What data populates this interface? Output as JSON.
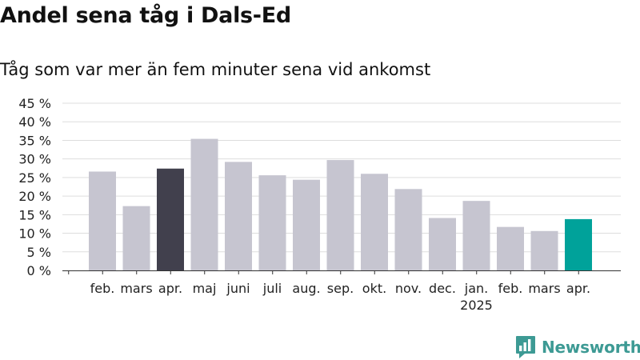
{
  "title": "Andel sena tåg i Dals-Ed",
  "subtitle": "Tåg som var mer än fem minuter sena vid ankomst",
  "brand": {
    "name": "Newsworthy",
    "color": "#3d9a94"
  },
  "chart_data": {
    "type": "bar",
    "categories": [
      "feb.",
      "mars",
      "apr.",
      "maj",
      "juni",
      "juli",
      "aug.",
      "sep.",
      "okt.",
      "nov.",
      "dec.",
      "jan.",
      "feb.",
      "mars",
      "apr."
    ],
    "year_labels": [
      {
        "index": 11,
        "text": "2025"
      }
    ],
    "values": [
      26.6,
      17.3,
      27.4,
      35.4,
      29.2,
      25.6,
      24.4,
      29.7,
      26.0,
      21.9,
      14.1,
      18.7,
      11.7,
      10.6,
      13.8
    ],
    "colors": [
      "#c6c5d0",
      "#c6c5d0",
      "#41404d",
      "#c6c5d0",
      "#c6c5d0",
      "#c6c5d0",
      "#c6c5d0",
      "#c6c5d0",
      "#c6c5d0",
      "#c6c5d0",
      "#c6c5d0",
      "#c6c5d0",
      "#c6c5d0",
      "#c6c5d0",
      "#00a29a"
    ],
    "y_ticks": [
      0,
      5,
      10,
      15,
      20,
      25,
      30,
      35,
      40,
      45
    ],
    "y_tick_labels": [
      "0 %",
      "5 %",
      "10 %",
      "15 %",
      "20 %",
      "25 %",
      "30 %",
      "35 %",
      "40 %",
      "45 %"
    ],
    "ylim": [
      0,
      45
    ],
    "grid": true,
    "xlabel": "",
    "ylabel": ""
  }
}
